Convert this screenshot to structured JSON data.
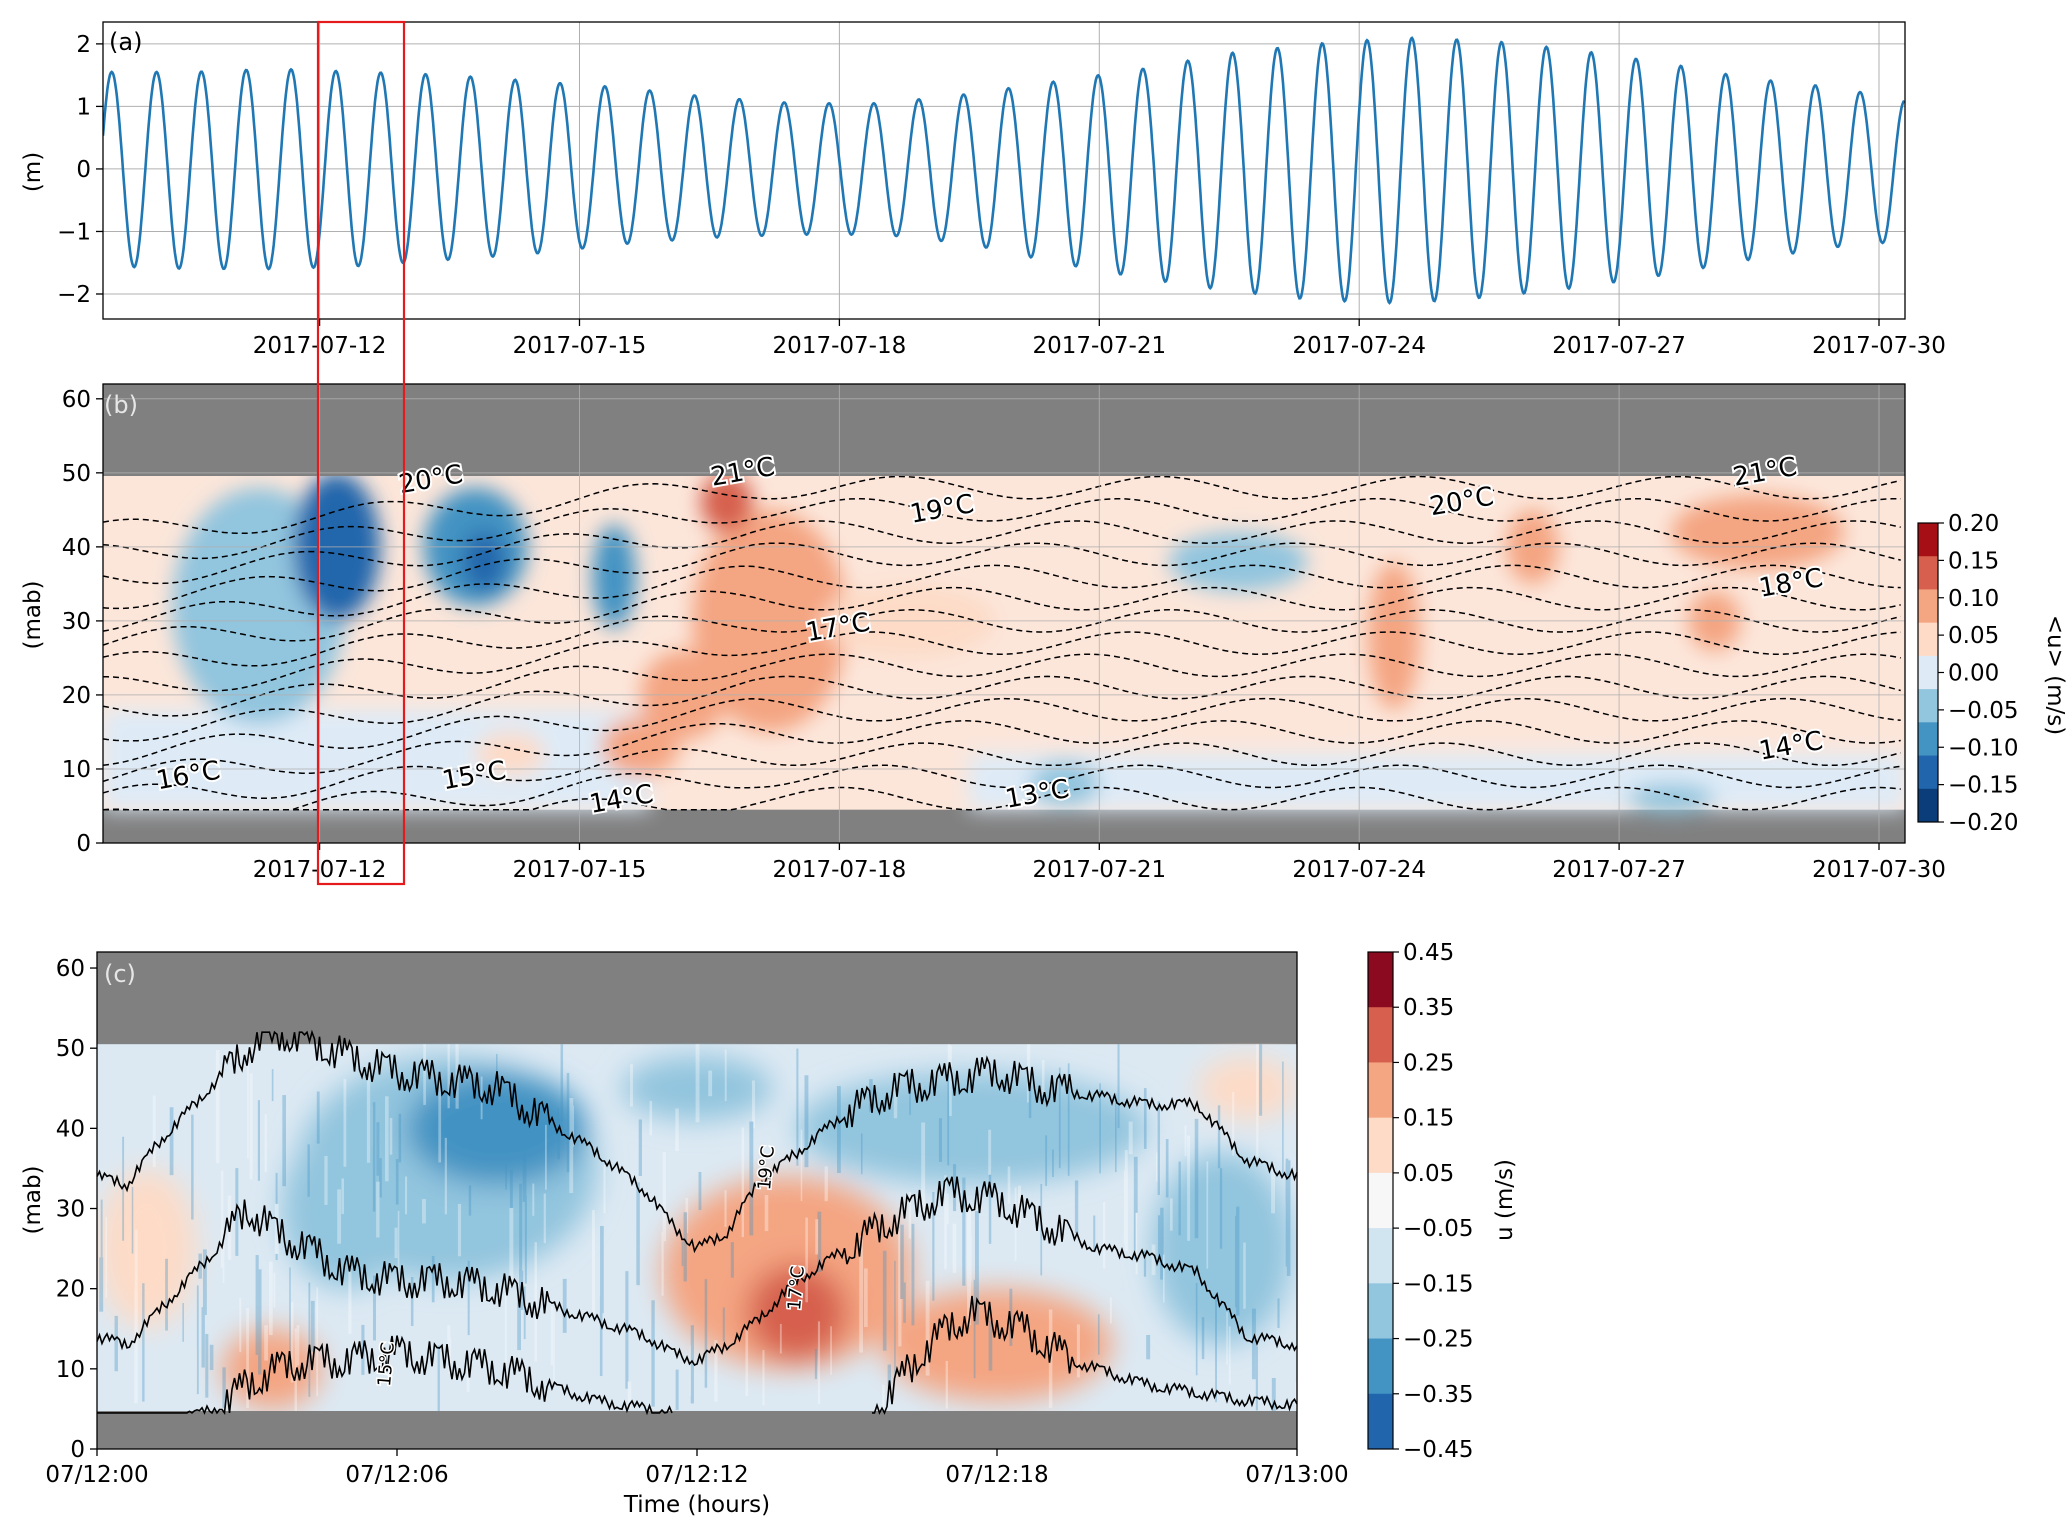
{
  "chart_data": [
    {
      "panel": "a",
      "type": "line",
      "label": "(a)",
      "ylabel": "(m)",
      "yticks": [
        -2,
        -1,
        0,
        1,
        2
      ],
      "ylim": [
        -2.4,
        2.35
      ],
      "xticks": [
        "2017-07-12",
        "2017-07-15",
        "2017-07-18",
        "2017-07-21",
        "2017-07-24",
        "2017-07-27",
        "2017-07-30"
      ],
      "xlim_days": [
        9.5,
        30.3
      ],
      "grid": true,
      "series_color": "#1f77b4",
      "highlight_box_color": "#e41a1c",
      "amp_envelope": {
        "day": [
          9.5,
          10.5,
          11.5,
          12.5,
          13.5,
          14.5,
          15.5,
          16.5,
          17.5,
          18.5,
          19.5,
          20.5,
          21.5,
          22.5,
          23.5,
          24.5,
          25.5,
          26.5,
          27.5,
          28.5,
          29.5,
          30.3
        ],
        "high": [
          1.55,
          1.55,
          1.6,
          1.55,
          1.5,
          1.4,
          1.3,
          1.15,
          1.05,
          1.05,
          1.2,
          1.4,
          1.6,
          1.85,
          2.0,
          2.1,
          2.05,
          1.9,
          1.7,
          1.45,
          1.3,
          1.1
        ],
        "low": [
          -1.55,
          -1.6,
          -1.6,
          -1.55,
          -1.45,
          -1.35,
          -1.2,
          -1.1,
          -1.05,
          -1.05,
          -1.2,
          -1.5,
          -1.75,
          -1.95,
          -2.1,
          -2.15,
          -2.05,
          -1.9,
          -1.7,
          -1.45,
          -1.25,
          -1.15
        ]
      }
    },
    {
      "panel": "b",
      "type": "heatmap",
      "label": "(b)",
      "ylabel": "(mab)",
      "yticks": [
        0,
        10,
        20,
        30,
        40,
        50,
        60
      ],
      "ylim": [
        0,
        62
      ],
      "xticks": [
        "2017-07-12",
        "2017-07-15",
        "2017-07-18",
        "2017-07-21",
        "2017-07-24",
        "2017-07-27",
        "2017-07-30"
      ],
      "xlim_days": [
        9.5,
        30.3
      ],
      "data_range_mab": [
        4.5,
        50.5
      ],
      "grid": true,
      "colorbar": {
        "label": "<u> (m/s)",
        "ticks": [
          "0.20",
          "0.15",
          "0.10",
          "0.05",
          "0.00",
          "−0.05",
          "−0.10",
          "−0.15",
          "−0.20"
        ],
        "colors": [
          "#a50f15",
          "#d6604d",
          "#f4a582",
          "#fddbc7",
          "#deebf7",
          "#92c5de",
          "#4393c3",
          "#2166ac",
          "#0b3d7a"
        ]
      },
      "isotherm_labels": [
        "20°C",
        "21°C",
        "19°C",
        "20°C",
        "21°C",
        "18°C",
        "17°C",
        "16°C",
        "15°C",
        "14°C",
        "13°C",
        "14°C"
      ],
      "isotherm_depths_mab": [
        48,
        45,
        42,
        39,
        36,
        33,
        30,
        27,
        24,
        21,
        18,
        15,
        12,
        9,
        6
      ],
      "velocity_patches": [
        {
          "day": 11.3,
          "mab": 32,
          "rx": 1.0,
          "ry": 16,
          "level": -1
        },
        {
          "day": 12.2,
          "mab": 40,
          "rx": 0.5,
          "ry": 10,
          "level": -3
        },
        {
          "day": 13.8,
          "mab": 40,
          "rx": 0.6,
          "ry": 8,
          "level": -2
        },
        {
          "day": 13.9,
          "mab": 38,
          "rx": 0.25,
          "ry": 4,
          "level": -3
        },
        {
          "day": 15.4,
          "mab": 36,
          "rx": 0.25,
          "ry": 7,
          "level": -2
        },
        {
          "day": 17.2,
          "mab": 30,
          "rx": 0.9,
          "ry": 15,
          "level": 2
        },
        {
          "day": 16.7,
          "mab": 46,
          "rx": 0.3,
          "ry": 4,
          "level": 3
        },
        {
          "day": 16.2,
          "mab": 20,
          "rx": 0.5,
          "ry": 6,
          "level": 2
        },
        {
          "day": 15.7,
          "mab": 13,
          "rx": 0.45,
          "ry": 4,
          "level": 2
        },
        {
          "day": 14.2,
          "mab": 12,
          "rx": 0.4,
          "ry": 3,
          "level": 1
        },
        {
          "day": 18.8,
          "mab": 30,
          "rx": 1.0,
          "ry": 5,
          "level": 1
        },
        {
          "day": 22.6,
          "mab": 38,
          "rx": 0.8,
          "ry": 4,
          "level": -1
        },
        {
          "day": 24.4,
          "mab": 28,
          "rx": 0.3,
          "ry": 10,
          "level": 2
        },
        {
          "day": 26.0,
          "mab": 40,
          "rx": 0.3,
          "ry": 5,
          "level": 2
        },
        {
          "day": 28.6,
          "mab": 42,
          "rx": 1.0,
          "ry": 5,
          "level": 2
        },
        {
          "day": 28.1,
          "mab": 30,
          "rx": 0.3,
          "ry": 4,
          "level": 2
        },
        {
          "day": 20.6,
          "mab": 8,
          "rx": 0.4,
          "ry": 3,
          "level": -1
        },
        {
          "day": 27.6,
          "mab": 6,
          "rx": 0.5,
          "ry": 2,
          "level": -1
        }
      ]
    },
    {
      "panel": "c",
      "type": "heatmap",
      "label": "(c)",
      "ylabel": "(mab)",
      "xlabel": "Time (hours)",
      "yticks": [
        0,
        10,
        20,
        30,
        40,
        50,
        60
      ],
      "ylim": [
        0,
        62
      ],
      "xticks": [
        "07/12:00",
        "07/12:06",
        "07/12:12",
        "07/12:18",
        "07/13:00"
      ],
      "xlim_hours": [
        0,
        24
      ],
      "data_range_mab": [
        4.5,
        50.5
      ],
      "colorbar": {
        "label": "u (m/s)",
        "ticks": [
          "0.45",
          "0.35",
          "0.25",
          "0.15",
          "0.05",
          "−0.05",
          "−0.15",
          "−0.25",
          "−0.35",
          "−0.45"
        ],
        "colors": [
          "#8b0a1f",
          "#d6604d",
          "#f4a582",
          "#fddbc7",
          "#f7f7f7",
          "#d1e5f0",
          "#92c5de",
          "#4393c3",
          "#2166ac"
        ]
      },
      "isotherm_labels": [
        "19°C",
        "17°C",
        "15°C"
      ],
      "isotherms": [
        {
          "hours": [
            0,
            0.6,
            1.2,
            1.8,
            2.4,
            3.0,
            3.6,
            4.2,
            5.0,
            6.0,
            7.0,
            8.0,
            9.0,
            10.0,
            11.0,
            11.5,
            12.0,
            12.6,
            13.2,
            14.0,
            15.0,
            16.0,
            17.0,
            18.0,
            19.0,
            20.0,
            21.0,
            22.0,
            23.0,
            24.0
          ],
          "mab": [
            34,
            33,
            38,
            42,
            46,
            50,
            52,
            51,
            49,
            47,
            46,
            45,
            41,
            37,
            32,
            28,
            25,
            27,
            33,
            37,
            42,
            45,
            46,
            47,
            45,
            44,
            43,
            43,
            36,
            34
          ]
        },
        {
          "hours": [
            0,
            0.6,
            1.2,
            1.8,
            2.4,
            3.0,
            3.6,
            4.2,
            5.0,
            6.0,
            7.0,
            8.0,
            9.0,
            10.0,
            11.0,
            11.5,
            12.0,
            12.6,
            13.2,
            14.0,
            15.0,
            16.0,
            17.0,
            18.0,
            19.0,
            20.0,
            21.0,
            22.0,
            23.0,
            24.0
          ],
          "mab": [
            14,
            13,
            17,
            21,
            25,
            30,
            27,
            25,
            22,
            21,
            21,
            20,
            18,
            16,
            14,
            12,
            11,
            13,
            16,
            21,
            25,
            29,
            32,
            31,
            28,
            25,
            24,
            22,
            14,
            13
          ]
        },
        {
          "hours": [
            0,
            0.6,
            1.2,
            1.8,
            2.4,
            3.0,
            3.6,
            4.2,
            5.0,
            6.0,
            7.0,
            8.0,
            9.0,
            10.0,
            11.0,
            11.5
          ],
          "mab": [
            2,
            2,
            3,
            4,
            5,
            8,
            10,
            11,
            11,
            12,
            11,
            10,
            8,
            6,
            5,
            4.5
          ]
        },
        {
          "hours": [
            15.5,
            16.0,
            16.5,
            17.0,
            17.5,
            18.0,
            18.5,
            19.0,
            19.5,
            20.0,
            21.0,
            22.0,
            23.0,
            24.0
          ],
          "mab": [
            4.5,
            8,
            12,
            15,
            17,
            16,
            15,
            13,
            11,
            10,
            8,
            7,
            6,
            5.5
          ]
        }
      ],
      "velocity_patches": [
        {
          "hours": 7.0,
          "mab": 35,
          "rx": 3.0,
          "ry": 14,
          "level": -2
        },
        {
          "hours": 8.0,
          "mab": 40,
          "rx": 1.8,
          "ry": 7,
          "level": -3
        },
        {
          "hours": 5.0,
          "mab": 30,
          "rx": 1.3,
          "ry": 10,
          "level": -2
        },
        {
          "hours": 13.8,
          "mab": 22,
          "rx": 2.5,
          "ry": 12,
          "level": 2
        },
        {
          "hours": 14.0,
          "mab": 17,
          "rx": 1.0,
          "ry": 6,
          "level": 3
        },
        {
          "hours": 18.0,
          "mab": 13,
          "rx": 2.3,
          "ry": 7,
          "level": 2
        },
        {
          "hours": 17.5,
          "mab": 40,
          "rx": 3.5,
          "ry": 7,
          "level": -2
        },
        {
          "hours": 22.5,
          "mab": 25,
          "rx": 1.4,
          "ry": 12,
          "level": -2
        },
        {
          "hours": 3.5,
          "mab": 10,
          "rx": 1.0,
          "ry": 5,
          "level": 2
        },
        {
          "hours": 1.0,
          "mab": 25,
          "rx": 1.0,
          "ry": 10,
          "level": 1
        },
        {
          "hours": 23.0,
          "mab": 45,
          "rx": 1.0,
          "ry": 4,
          "level": 1
        },
        {
          "hours": 12.0,
          "mab": 45,
          "rx": 1.5,
          "ry": 4,
          "level": -2
        }
      ]
    }
  ]
}
